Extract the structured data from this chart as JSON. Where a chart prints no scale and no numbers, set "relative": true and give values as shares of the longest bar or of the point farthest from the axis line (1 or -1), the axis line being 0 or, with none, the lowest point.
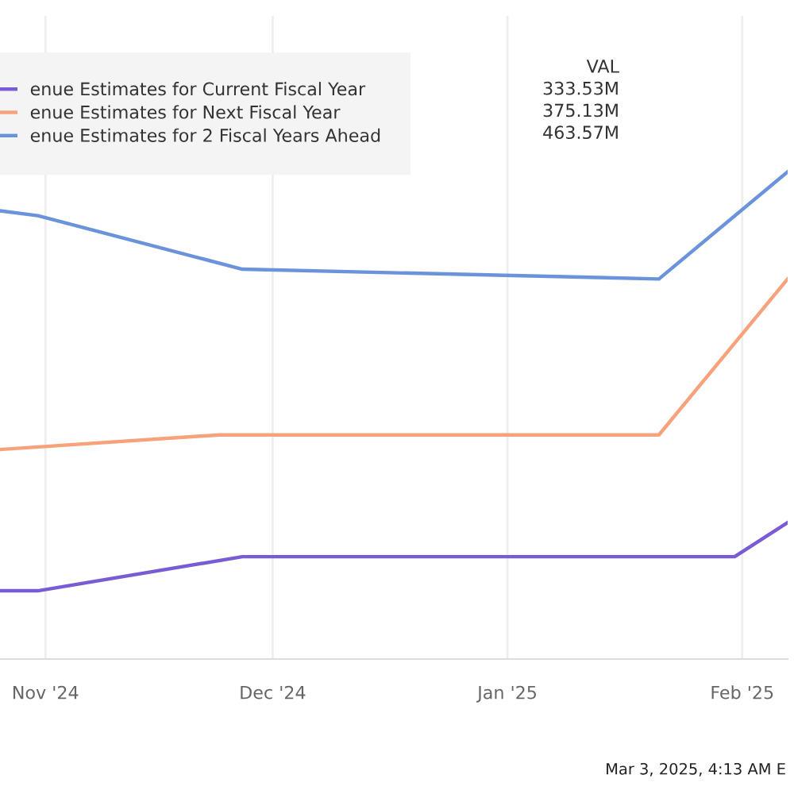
{
  "chart_data": {
    "type": "line",
    "relative": true,
    "series": [
      {
        "name": "enue Estimates for Current Fiscal Year",
        "color": "#7a5bd6",
        "x": [
          "2024-10-26",
          "2024-10-31",
          "2024-11-27",
          "2025-01-31",
          "2025-02-07"
        ],
        "values": [
          0.14,
          0.14,
          0.21,
          0.21,
          0.28
        ]
      },
      {
        "name": "enue Estimates for Next Fiscal Year",
        "color": "#f7a27a",
        "x": [
          "2024-10-26",
          "2024-11-24",
          "2025-01-21",
          "2025-02-07"
        ],
        "values": [
          0.43,
          0.46,
          0.46,
          0.78
        ]
      },
      {
        "name": "enue Estimates for 2 Fiscal Years Ahead",
        "color": "#6a93dc",
        "x": [
          "2024-10-26",
          "2024-10-31",
          "2024-11-27",
          "2025-01-21",
          "2025-02-07"
        ],
        "values": [
          0.92,
          0.91,
          0.8,
          0.78,
          1
        ]
      }
    ],
    "xlim": [
      "2024-10-26",
      "2025-02-07"
    ],
    "xticks": [
      {
        "value": "2024-11-01",
        "label": "Nov '24"
      },
      {
        "value": "2024-12-01",
        "label": "Dec '24"
      },
      {
        "value": "2025-01-01",
        "label": "Jan '25"
      },
      {
        "value": "2025-02-01",
        "label": "Feb '25"
      }
    ],
    "tick_labels": "x",
    "grid": "x",
    "legend": "top left",
    "marker": "none",
    "line_style": "solid",
    "annotations": [
      "VAL",
      "333.53M",
      "375.13M",
      "463.57M",
      "Mar 3, 2025, 4:13 AM E"
    ]
  }
}
